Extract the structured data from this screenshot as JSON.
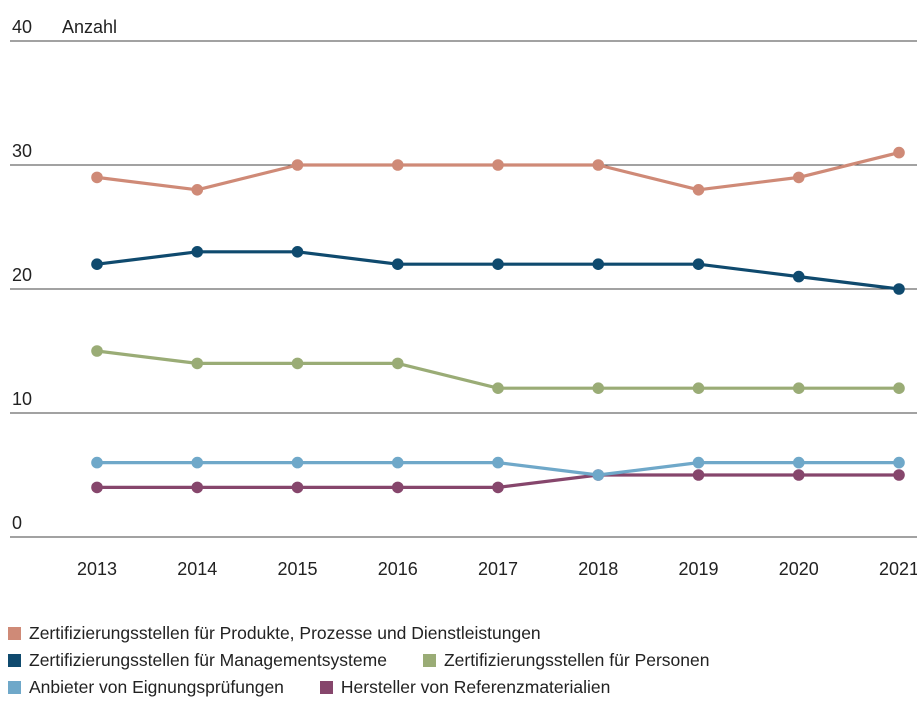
{
  "chart_data": {
    "type": "line",
    "unit_label": "Anzahl",
    "x": [
      "2013",
      "2014",
      "2015",
      "2016",
      "2017",
      "2018",
      "2019",
      "2020",
      "2021"
    ],
    "ylim": [
      0,
      40
    ],
    "yticks": [
      "0",
      "10",
      "20",
      "30",
      "40"
    ],
    "grid": "horizontal",
    "legend_position": "bottom",
    "series": [
      {
        "name": "Zertifizierungsstellen für Produkte, Prozesse und Dienstleistungen",
        "color": "#cf8a77",
        "values": [
          29,
          28,
          30,
          30,
          30,
          30,
          28,
          29,
          31
        ]
      },
      {
        "name": "Zertifizierungsstellen für Managementsysteme",
        "color": "#0f4a6e",
        "values": [
          22,
          23,
          23,
          22,
          22,
          22,
          22,
          21,
          20
        ]
      },
      {
        "name": "Zertifizierungsstellen für Personen",
        "color": "#9aac76",
        "values": [
          15,
          14,
          14,
          14,
          12,
          12,
          12,
          12,
          12
        ]
      },
      {
        "name": "Anbieter von Eignungsprüfungen",
        "color": "#6fa8c9",
        "values": [
          6,
          6,
          6,
          6,
          6,
          5,
          6,
          6,
          6
        ]
      },
      {
        "name": "Hersteller von Referenzmaterialien",
        "color": "#86466c",
        "values": [
          4,
          4,
          4,
          4,
          4,
          5,
          5,
          5,
          5
        ]
      }
    ]
  },
  "legend_rows": [
    [
      0
    ],
    [
      1,
      2
    ],
    [
      3,
      4
    ]
  ]
}
